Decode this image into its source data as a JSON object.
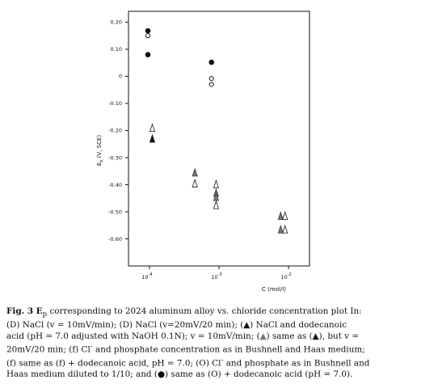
{
  "chart_data": {
    "type": "scatter",
    "xlabel": "C (mol/l)",
    "ylabel_main": "E",
    "ylabel_sub": "b",
    "ylabel_rest": " (V, SCE)",
    "xscale": "log",
    "xlim": [
      5e-05,
      0.02
    ],
    "ylim": [
      -0.7,
      0.24
    ],
    "yticks": [
      {
        "v": 0.2,
        "label": "0.20"
      },
      {
        "v": 0.1,
        "label": "0.10"
      },
      {
        "v": 0.0,
        "label": "0"
      },
      {
        "v": -0.1,
        "label": "-0.10"
      },
      {
        "v": -0.2,
        "label": "-0.20"
      },
      {
        "v": -0.3,
        "label": "-0.30"
      },
      {
        "v": -0.4,
        "label": "-0.40"
      },
      {
        "v": -0.5,
        "label": "-0.50"
      },
      {
        "v": -0.6,
        "label": "-0.60"
      }
    ],
    "xticks": [
      {
        "v": 0.0001,
        "base": "10",
        "exp": "-4"
      },
      {
        "v": 0.001,
        "base": "10",
        "exp": "-3"
      },
      {
        "v": 0.01,
        "base": "10",
        "exp": "-2"
      }
    ],
    "grid": false,
    "points": [
      {
        "x": 9.5e-05,
        "y": 0.168,
        "marker": "filled-circle"
      },
      {
        "x": 9.5e-05,
        "y": 0.15,
        "marker": "open-circle"
      },
      {
        "x": 9.5e-05,
        "y": 0.08,
        "marker": "filled-circle"
      },
      {
        "x": 0.00011,
        "y": -0.19,
        "marker": "open-triangle"
      },
      {
        "x": 0.00011,
        "y": -0.23,
        "marker": "filled-triangle"
      },
      {
        "x": 0.00045,
        "y": -0.355,
        "marker": "gray-triangle"
      },
      {
        "x": 0.00045,
        "y": -0.395,
        "marker": "open-triangle"
      },
      {
        "x": 0.00078,
        "y": 0.052,
        "marker": "filled-circle"
      },
      {
        "x": 0.00078,
        "y": -0.008,
        "marker": "open-circle"
      },
      {
        "x": 0.00078,
        "y": -0.03,
        "marker": "open-circle"
      },
      {
        "x": 0.00091,
        "y": -0.398,
        "marker": "open-triangle"
      },
      {
        "x": 0.00091,
        "y": -0.43,
        "marker": "gray-triangle"
      },
      {
        "x": 0.00091,
        "y": -0.445,
        "marker": "gray-triangle"
      },
      {
        "x": 0.00091,
        "y": -0.475,
        "marker": "open-triangle"
      },
      {
        "x": 0.0077,
        "y": -0.515,
        "marker": "gray-triangle"
      },
      {
        "x": 0.0089,
        "y": -0.515,
        "marker": "open-triangle"
      },
      {
        "x": 0.0077,
        "y": -0.565,
        "marker": "gray-triangle"
      },
      {
        "x": 0.0089,
        "y": -0.565,
        "marker": "open-triangle"
      }
    ]
  },
  "caption": {
    "fig_label": "Fig. 3 E",
    "fig_sub": "p",
    "line1_rest": " corresponding to 2024 aluminum alloy vs. chloride concentration plot In:",
    "line2": "(D) NaCl (v = 10mV/min); (D) NaCl (v=20mV/20 min); (",
    "line2b": ") NaCl and dodecanoic",
    "line3": "acid (pH = 7.0 adjusted with NaOH 0.1N); v = 10mV/min; (",
    "line3b": ") same as (",
    "line3c": "), but v =",
    "line4": "20mV/20 min; (f) Cl",
    "line4sup": "-",
    "line4b": " and phosphate concentration as in Bushnell and Haas medium;",
    "line5": "(f) same as (f) + dodecanoic acid, pH = 7.0; (O) Cl",
    "line5sup": "-",
    "line5b": " and phosphate as in Bushnell and",
    "line6": "Haas medium diluted to 1/10; and (",
    "line6b": ") same as (O) + dodecanoic acid (pH = 7.0).",
    "sym_triangle": "▲",
    "sym_circle": "●"
  }
}
